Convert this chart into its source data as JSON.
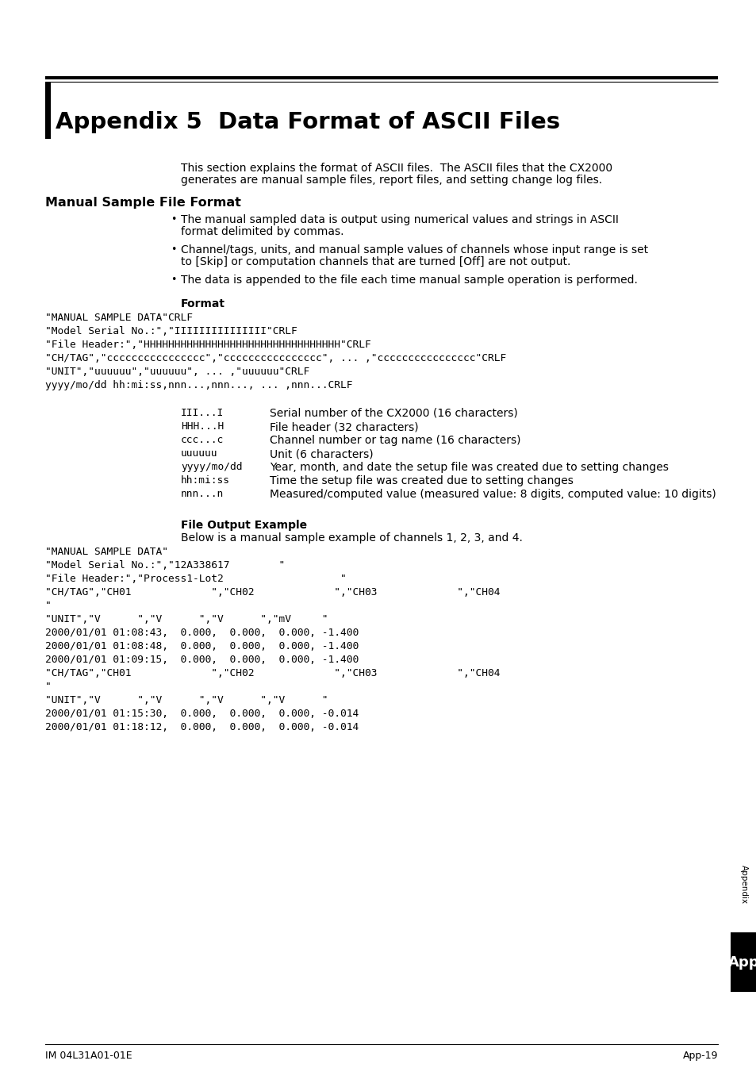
{
  "title": "Appendix 5  Data Format of ASCII Files",
  "bg_color": "#ffffff",
  "intro_line1": "This section explains the format of ASCII files.  The ASCII files that the CX2000",
  "intro_line2": "generates are manual sample files, report files, and setting change log files.",
  "section1_title": "Manual Sample File Format",
  "bullet1_line1": "The manual sampled data is output using numerical values and strings in ASCII",
  "bullet1_line2": "format delimited by commas.",
  "bullet2_line1": "Channel/tags, units, and manual sample values of channels whose input range is set",
  "bullet2_line2": "to [Skip] or computation channels that are turned [Off] are not output.",
  "bullet3_line1": "The data is appended to the file each time manual sample operation is performed.",
  "format_label": "Format",
  "fmt1": "\"MANUAL SAMPLE DATA\"CRLF",
  "fmt2": "\"Model Serial No.:\",\"IIIIIIIIIIIIIII\"CRLF",
  "fmt3": "\"File Header:\",\"HHHHHHHHHHHHHHHHHHHHHHHHHHHHHHHH\"CRLF",
  "fmt4": "\"CH/TAG\",\"cccccccccccccccc\",\"cccccccccccccccc\", ... ,\"cccccccccccccccc\"CRLF",
  "fmt5": "\"UNIT\",\"uuuuuu\",\"uuuuuu\", ... ,\"uuuuuu\"CRLF",
  "fmt6": "yyyy/mo/dd hh:mi:ss,nnn...,nnn..., ... ,nnn...CRLF",
  "leg1_code": "III...I",
  "leg1_desc": "Serial number of the CX2000 (16 characters)",
  "leg2_code": "HHH...H",
  "leg2_desc": "File header (32 characters)",
  "leg3_code": "ccc...c",
  "leg3_desc": "Channel number or tag name (16 characters)",
  "leg4_code": "uuuuuu",
  "leg4_desc": "Unit (6 characters)",
  "leg5_code": "yyyy/mo/dd",
  "leg5_desc": "Year, month, and date the setup file was created due to setting changes",
  "leg6_code": "hh:mi:ss",
  "leg6_desc": "Time the setup file was created due to setting changes",
  "leg7_code": "nnn...n",
  "leg7_desc": "Measured/computed value (measured value: 8 digits, computed value: 10 digits)",
  "example_label": "File Output Example",
  "example_intro": "Below is a manual sample example of channels 1, 2, 3, and 4.",
  "ex1": "\"MANUAL SAMPLE DATA\"",
  "ex2": "\"Model Serial No.:\",\"12A338617        \"",
  "ex3": "\"File Header:\",\"Process1-Lot2                   \"",
  "ex4": "\"CH/TAG\",\"CH01             \",\"CH02             \",\"CH03             \",\"CH04",
  "ex5": "\"",
  "ex6": "\"UNIT\",\"V      \",\"V      \",\"V      \",\"mV     \"",
  "ex7": "2000/01/01 01:08:43,  0.000,  0.000,  0.000, -1.400",
  "ex8": "2000/01/01 01:08:48,  0.000,  0.000,  0.000, -1.400",
  "ex9": "2000/01/01 01:09:15,  0.000,  0.000,  0.000, -1.400",
  "ex10": "\"CH/TAG\",\"CH01             \",\"CH02             \",\"CH03             \",\"CH04",
  "ex11": "\"",
  "ex12": "\"UNIT\",\"V      \",\"V      \",\"V      \",\"V      \"",
  "ex13": "2000/01/01 01:15:30,  0.000,  0.000,  0.000, -0.014",
  "ex14": "2000/01/01 01:18:12,  0.000,  0.000,  0.000, -0.014",
  "footer_left": "IM 04L31A01-01E",
  "footer_right": "App-19",
  "app_tab_text": "App",
  "appendix_label": "Appendix"
}
